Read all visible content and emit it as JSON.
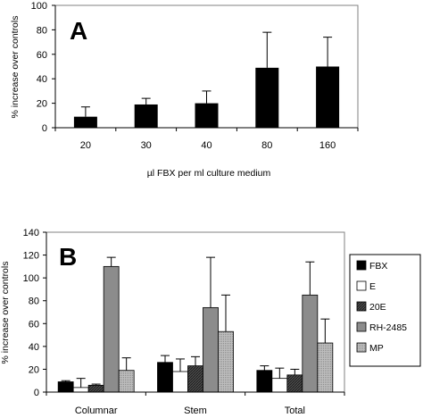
{
  "chart_data": [
    {
      "type": "bar",
      "panel_label": "A",
      "categories": [
        "20",
        "30",
        "40",
        "80",
        "160"
      ],
      "series": [
        {
          "values": [
            9,
            19,
            20,
            49,
            50
          ],
          "error": [
            8,
            5,
            10,
            29,
            24
          ],
          "color": "#000000"
        }
      ],
      "xlabel": "µl FBX per ml culture medium",
      "ylabel": "% increase over controls",
      "ylim": [
        0,
        100
      ],
      "yticks": [
        0,
        20,
        40,
        60,
        80,
        100
      ],
      "grid": false,
      "legend": "none"
    },
    {
      "type": "bar",
      "panel_label": "B",
      "categories": [
        "Columnar",
        "Stem",
        "Total"
      ],
      "series": [
        {
          "name": "FBX",
          "values": [
            9,
            26,
            19
          ],
          "error": [
            1,
            6,
            4
          ],
          "pattern": "solid-black"
        },
        {
          "name": "E",
          "values": [
            4,
            18,
            12
          ],
          "error": [
            8,
            11,
            9
          ],
          "pattern": "white"
        },
        {
          "name": "20E",
          "values": [
            6,
            23,
            15
          ],
          "error": [
            1,
            8,
            5
          ],
          "pattern": "dark-hatched"
        },
        {
          "name": "RH-2485",
          "values": [
            110,
            74,
            85
          ],
          "error": [
            8,
            44,
            29
          ],
          "pattern": "gray"
        },
        {
          "name": "MP",
          "values": [
            19,
            53,
            43
          ],
          "error": [
            11,
            32,
            21
          ],
          "pattern": "light-dotted"
        }
      ],
      "xlabel": "",
      "ylabel": "% increase over controls",
      "ylim": [
        0,
        140
      ],
      "yticks": [
        0,
        20,
        40,
        60,
        80,
        100,
        120,
        140
      ],
      "grid": false,
      "legend": "right"
    }
  ]
}
